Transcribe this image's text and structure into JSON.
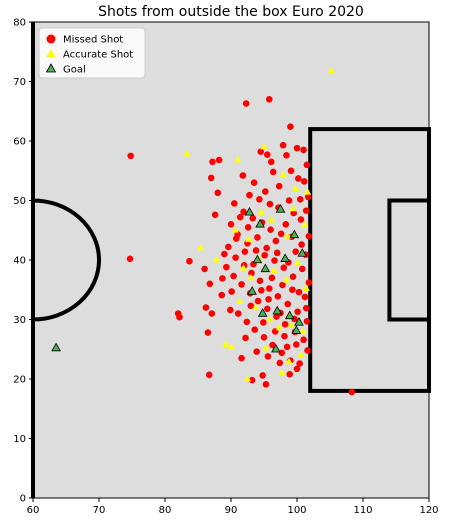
{
  "chart_data": {
    "type": "scatter",
    "title": "Shots from outside the box Euro 2020",
    "xlabel": "",
    "ylabel": "",
    "xlim": [
      60,
      120
    ],
    "ylim": [
      0,
      80
    ],
    "xticks": [
      60,
      70,
      80,
      90,
      100,
      110,
      120
    ],
    "yticks": [
      0,
      10,
      20,
      30,
      40,
      50,
      60,
      70,
      80
    ],
    "xtick_labels": [
      "60",
      "70",
      "80",
      "90",
      "100",
      "110",
      "120"
    ],
    "ytick_labels": [
      "0",
      "10",
      "20",
      "30",
      "40",
      "50",
      "60",
      "70",
      "80"
    ],
    "grid": false,
    "legend_position": "top-left",
    "colors": {
      "missed": "#ff0000",
      "accurate": "#ffff00",
      "goal": "#4caf50",
      "background": "#dddddd",
      "pitch_lines": "#000000"
    },
    "pitch_markings": {
      "halfway_line_x": 60,
      "center_circle": {
        "cx": 60,
        "cy": 40,
        "r": 10
      },
      "penalty_box": {
        "x0": 102,
        "x1": 120,
        "y0": 18,
        "y1": 62
      },
      "six_yard_box": {
        "x0": 114,
        "x1": 120,
        "y0": 30,
        "y1": 50
      }
    },
    "series": [
      {
        "name": "Missed Shot",
        "marker": "circle",
        "points": [
          [
            74.8,
            57.5
          ],
          [
            74.7,
            40.2
          ],
          [
            82.0,
            31.0
          ],
          [
            82.2,
            30.4
          ],
          [
            86.7,
            20.7
          ],
          [
            86.5,
            27.8
          ],
          [
            87.2,
            56.5
          ],
          [
            88.2,
            56.8
          ],
          [
            87.0,
            53.8
          ],
          [
            88.0,
            51.3
          ],
          [
            87.6,
            47.6
          ],
          [
            86.8,
            36.0
          ],
          [
            86.0,
            38.5
          ],
          [
            86.2,
            32.0
          ],
          [
            87.1,
            31.0
          ],
          [
            88.6,
            34.1
          ],
          [
            89.0,
            41.0
          ],
          [
            83.7,
            39.8
          ],
          [
            92.3,
            66.3
          ],
          [
            95.8,
            67.0
          ],
          [
            97.9,
            59.3
          ],
          [
            95.5,
            57.7
          ],
          [
            99.0,
            62.4
          ],
          [
            94.5,
            58.2
          ],
          [
            96.1,
            56.5
          ],
          [
            91.8,
            54.2
          ],
          [
            93.5,
            53.0
          ],
          [
            95.2,
            51.5
          ],
          [
            97.3,
            52.4
          ],
          [
            99.1,
            55.0
          ],
          [
            100.2,
            53.7
          ],
          [
            101.5,
            56.0
          ],
          [
            101.0,
            58.5
          ],
          [
            100.0,
            58.8
          ],
          [
            98.4,
            57.6
          ],
          [
            90.5,
            49.5
          ],
          [
            91.9,
            48.1
          ],
          [
            93.3,
            47.0
          ],
          [
            94.7,
            46.3
          ],
          [
            96.0,
            45.1
          ],
          [
            97.6,
            44.4
          ],
          [
            99.2,
            43.9
          ],
          [
            100.6,
            46.8
          ],
          [
            101.4,
            48.3
          ],
          [
            90.0,
            46.0
          ],
          [
            91.0,
            44.3
          ],
          [
            92.5,
            42.8
          ],
          [
            93.8,
            41.6
          ],
          [
            95.1,
            40.8
          ],
          [
            96.6,
            39.9
          ],
          [
            98.0,
            38.7
          ],
          [
            99.4,
            37.2
          ],
          [
            100.8,
            38.5
          ],
          [
            101.3,
            40.9
          ],
          [
            89.6,
            42.2
          ],
          [
            90.7,
            40.4
          ],
          [
            92.0,
            39.1
          ],
          [
            93.1,
            37.8
          ],
          [
            94.4,
            36.5
          ],
          [
            95.8,
            35.2
          ],
          [
            97.1,
            33.9
          ],
          [
            98.6,
            32.6
          ],
          [
            100.1,
            31.3
          ],
          [
            101.2,
            33.8
          ],
          [
            90.4,
            37.3
          ],
          [
            91.6,
            35.9
          ],
          [
            92.9,
            34.4
          ],
          [
            94.1,
            33.1
          ],
          [
            95.5,
            31.8
          ],
          [
            96.9,
            30.5
          ],
          [
            98.2,
            29.2
          ],
          [
            99.7,
            27.9
          ],
          [
            101.0,
            26.6
          ],
          [
            91.1,
            31.0
          ],
          [
            92.4,
            29.6
          ],
          [
            93.6,
            28.3
          ],
          [
            95.0,
            27.0
          ],
          [
            96.3,
            25.7
          ],
          [
            97.7,
            24.4
          ],
          [
            99.0,
            23.1
          ],
          [
            100.4,
            22.6
          ],
          [
            101.6,
            24.8
          ],
          [
            91.6,
            23.5
          ],
          [
            93.2,
            19.8
          ],
          [
            95.3,
            19.1
          ],
          [
            94.8,
            20.6
          ],
          [
            98.9,
            20.8
          ],
          [
            100.0,
            21.7
          ],
          [
            108.3,
            17.8
          ],
          [
            101.8,
            44.0
          ],
          [
            101.7,
            50.6
          ],
          [
            101.8,
            36.2
          ],
          [
            101.5,
            29.7
          ],
          [
            96.4,
            54.8
          ],
          [
            98.8,
            50.0
          ],
          [
            97.2,
            48.8
          ],
          [
            95.9,
            49.4
          ],
          [
            94.3,
            50.2
          ],
          [
            92.8,
            50.9
          ],
          [
            91.4,
            47.2
          ],
          [
            90.8,
            43.6
          ],
          [
            89.3,
            38.8
          ],
          [
            88.7,
            36.9
          ],
          [
            90.1,
            34.7
          ],
          [
            89.9,
            31.6
          ],
          [
            92.2,
            26.9
          ],
          [
            93.9,
            24.6
          ],
          [
            95.6,
            23.8
          ],
          [
            97.4,
            22.7
          ],
          [
            98.5,
            25.4
          ],
          [
            99.6,
            30.1
          ],
          [
            100.3,
            34.6
          ],
          [
            99.8,
            41.4
          ],
          [
            98.3,
            46.0
          ],
          [
            96.8,
            43.2
          ],
          [
            95.4,
            42.0
          ],
          [
            94.0,
            43.8
          ],
          [
            92.6,
            45.5
          ],
          [
            93.0,
            32.3
          ],
          [
            94.6,
            34.9
          ],
          [
            96.2,
            37.0
          ],
          [
            97.8,
            35.8
          ],
          [
            99.3,
            35.0
          ],
          [
            100.7,
            42.6
          ],
          [
            97.0,
            41.2
          ],
          [
            98.7,
            39.6
          ],
          [
            100.5,
            50.2
          ],
          [
            99.5,
            47.9
          ],
          [
            101.1,
            53.2
          ],
          [
            96.7,
            28.0
          ],
          [
            98.1,
            27.2
          ],
          [
            94.9,
            29.5
          ],
          [
            93.4,
            39.3
          ],
          [
            92.1,
            41.4
          ],
          [
            95.7,
            33.4
          ],
          [
            97.5,
            31.1
          ],
          [
            99.9,
            25.8
          ],
          [
            101.4,
            31.9
          ]
        ]
      },
      {
        "name": "Accurate Shot",
        "marker": "triangle",
        "points": [
          [
            105.2,
            71.8
          ],
          [
            83.3,
            57.8
          ],
          [
            85.4,
            42.0
          ],
          [
            87.8,
            40.0
          ],
          [
            89.2,
            25.8
          ],
          [
            90.1,
            25.3
          ],
          [
            91.0,
            56.8
          ],
          [
            95.0,
            59.0
          ],
          [
            97.9,
            54.3
          ],
          [
            99.8,
            52.0
          ],
          [
            101.6,
            51.4
          ],
          [
            90.6,
            45.0
          ],
          [
            92.7,
            43.4
          ],
          [
            94.2,
            40.1
          ],
          [
            96.5,
            38.2
          ],
          [
            98.4,
            36.6
          ],
          [
            100.1,
            39.5
          ],
          [
            91.3,
            33.0
          ],
          [
            93.7,
            32.0
          ],
          [
            95.9,
            30.0
          ],
          [
            97.3,
            28.6
          ],
          [
            98.8,
            22.9
          ],
          [
            100.6,
            24.0
          ],
          [
            92.5,
            20.0
          ],
          [
            96.1,
            46.7
          ],
          [
            98.6,
            44.0
          ],
          [
            101.2,
            45.9
          ],
          [
            99.4,
            48.6
          ],
          [
            94.6,
            48.0
          ],
          [
            97.7,
            21.0
          ],
          [
            101.4,
            35.2
          ],
          [
            93.0,
            37.0
          ],
          [
            91.9,
            38.6
          ],
          [
            95.3,
            25.2
          ],
          [
            99.1,
            29.0
          ],
          [
            100.9,
            28.0
          ]
        ]
      },
      {
        "name": "Goal",
        "marker": "triangle",
        "points": [
          [
            63.5,
            25.2
          ],
          [
            92.8,
            48.0
          ],
          [
            94.0,
            40.0
          ],
          [
            95.2,
            38.5
          ],
          [
            97.5,
            48.5
          ],
          [
            98.2,
            40.2
          ],
          [
            99.6,
            44.2
          ],
          [
            100.8,
            41.1
          ],
          [
            93.2,
            34.7
          ],
          [
            94.8,
            31.0
          ],
          [
            97.0,
            31.4
          ],
          [
            96.8,
            25.0
          ],
          [
            98.9,
            30.6
          ],
          [
            99.9,
            28.1
          ],
          [
            94.4,
            46.0
          ],
          [
            100.3,
            29.5
          ]
        ]
      }
    ]
  }
}
